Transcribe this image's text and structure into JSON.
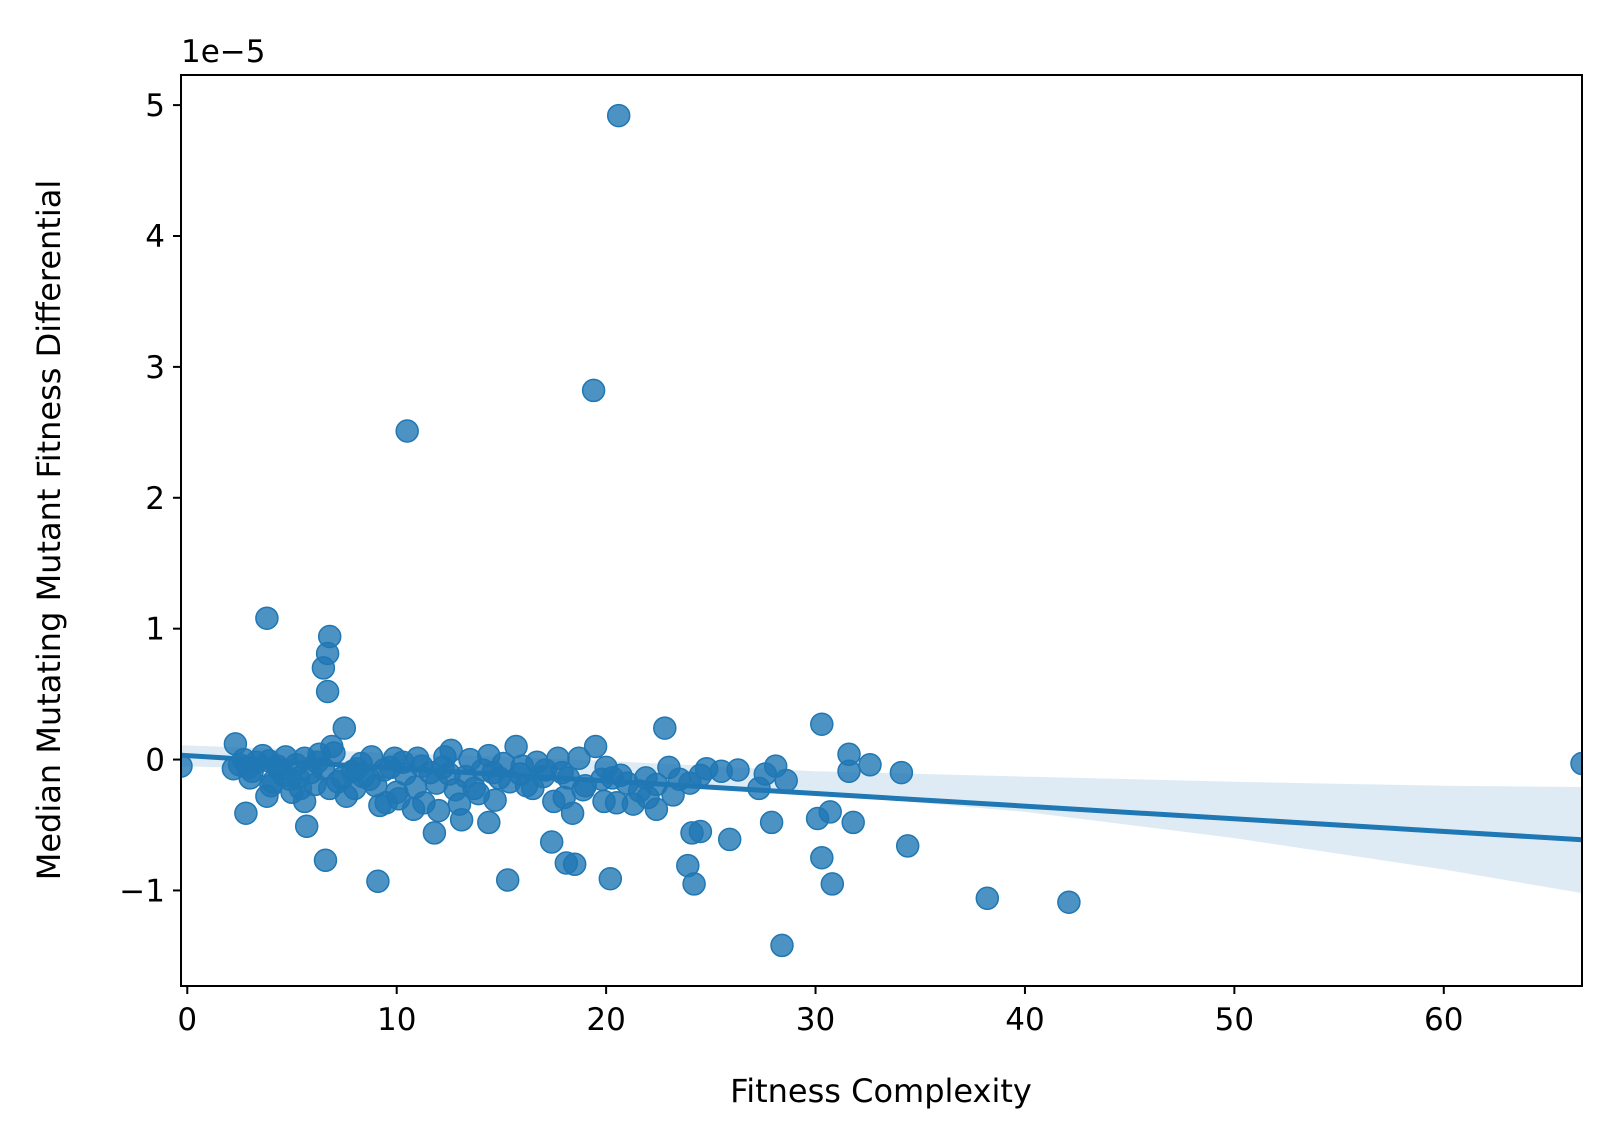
{
  "chart_data": {
    "type": "scatter",
    "title": "",
    "xlabel": "Fitness Complexity",
    "ylabel": "Median Mutating Mutant Fitness Differential",
    "y_offset_label": "1e−5",
    "y_scale_factor": 1e-05,
    "xlim": [
      -0.3,
      66.6
    ],
    "ylim": [
      -1.73,
      5.23
    ],
    "x_ticks": [
      0,
      10,
      20,
      30,
      40,
      50,
      60
    ],
    "x_tick_labels": [
      "0",
      "10",
      "20",
      "30",
      "40",
      "50",
      "60"
    ],
    "y_ticks": [
      -1,
      0,
      1,
      2,
      3,
      4,
      5
    ],
    "y_tick_labels": [
      "−1",
      "0",
      "1",
      "2",
      "3",
      "4",
      "5"
    ],
    "grid": false,
    "legend": "none",
    "colors": {
      "points": "#1f77b4",
      "line": "#1f77b4",
      "band": "#1f77b4"
    },
    "points": [
      [
        -0.3,
        -0.05
      ],
      [
        20.6,
        4.92
      ],
      [
        19.4,
        2.82
      ],
      [
        10.5,
        2.51
      ],
      [
        3.8,
        1.08
      ],
      [
        6.8,
        0.94
      ],
      [
        6.7,
        0.81
      ],
      [
        6.5,
        0.7
      ],
      [
        6.7,
        0.52
      ],
      [
        7.5,
        0.24
      ],
      [
        30.3,
        0.27
      ],
      [
        22.8,
        0.24
      ],
      [
        2.3,
        0.12
      ],
      [
        2.8,
        -0.41
      ],
      [
        3.8,
        -0.28
      ],
      [
        5.6,
        -0.32
      ],
      [
        5.7,
        -0.51
      ],
      [
        6.6,
        -0.77
      ],
      [
        9.1,
        -0.93
      ],
      [
        11.8,
        -0.56
      ],
      [
        13.1,
        -0.46
      ],
      [
        14.4,
        -0.48
      ],
      [
        15.3,
        -0.92
      ],
      [
        17.4,
        -0.63
      ],
      [
        18.1,
        -0.79
      ],
      [
        18.5,
        -0.8
      ],
      [
        18.4,
        -0.41
      ],
      [
        20.2,
        -0.91
      ],
      [
        22.4,
        -0.38
      ],
      [
        23.9,
        -0.81
      ],
      [
        24.1,
        -0.56
      ],
      [
        24.5,
        -0.55
      ],
      [
        24.2,
        -0.95
      ],
      [
        25.9,
        -0.61
      ],
      [
        27.9,
        -0.48
      ],
      [
        28.4,
        -1.42
      ],
      [
        30.1,
        -0.45
      ],
      [
        30.3,
        -0.75
      ],
      [
        30.8,
        -0.95
      ],
      [
        30.7,
        -0.4
      ],
      [
        31.8,
        -0.48
      ],
      [
        34.4,
        -0.66
      ],
      [
        38.2,
        -1.06
      ],
      [
        42.1,
        -1.09
      ],
      [
        34.1,
        -0.1
      ],
      [
        32.6,
        -0.04
      ],
      [
        31.6,
        0.04
      ],
      [
        31.6,
        -0.09
      ],
      [
        28.1,
        -0.05
      ],
      [
        27.6,
        -0.11
      ],
      [
        26.3,
        -0.08
      ],
      [
        24.8,
        -0.07
      ],
      [
        24.5,
        -0.12
      ],
      [
        23.0,
        -0.06
      ],
      [
        22.4,
        -0.19
      ],
      [
        23.2,
        -0.27
      ],
      [
        21.3,
        -0.34
      ],
      [
        20.7,
        -0.12
      ],
      [
        19.5,
        0.1
      ],
      [
        19.9,
        -0.32
      ],
      [
        17.5,
        -0.32
      ],
      [
        17.9,
        -0.1
      ],
      [
        16.2,
        -0.2
      ],
      [
        15.7,
        0.1
      ],
      [
        15.4,
        -0.17
      ],
      [
        14.7,
        -0.31
      ],
      [
        14.4,
        0.03
      ],
      [
        13.7,
        -0.22
      ],
      [
        12.6,
        0.07
      ],
      [
        12.0,
        -0.39
      ],
      [
        11.3,
        -0.33
      ],
      [
        10.8,
        -0.38
      ],
      [
        10.1,
        -0.3
      ],
      [
        9.5,
        -0.33
      ],
      [
        9.2,
        -0.35
      ],
      [
        8.8,
        0.02
      ],
      [
        8.4,
        -0.13
      ],
      [
        7.6,
        -0.28
      ],
      [
        7.2,
        -0.17
      ],
      [
        6.9,
        0.1
      ],
      [
        6.3,
        0.04
      ],
      [
        5.2,
        -0.04
      ],
      [
        4.6,
        -0.12
      ],
      [
        4.1,
        -0.17
      ],
      [
        3.6,
        0.03
      ],
      [
        3.1,
        -0.09
      ],
      [
        2.5,
        -0.04
      ],
      [
        2.2,
        -0.07
      ],
      [
        27.3,
        -0.22
      ],
      [
        28.6,
        -0.16
      ],
      [
        20.3,
        -0.14
      ],
      [
        24.0,
        -0.18
      ],
      [
        25.5,
        -0.09
      ],
      [
        19.0,
        -0.2
      ],
      [
        21.0,
        -0.18
      ],
      [
        18.9,
        -0.23
      ],
      [
        16.7,
        -0.02
      ],
      [
        17.0,
        -0.13
      ],
      [
        14.1,
        -0.08
      ],
      [
        13.3,
        -0.13
      ],
      [
        12.2,
        -0.06
      ],
      [
        11.6,
        -0.1
      ],
      [
        10.4,
        -0.11
      ],
      [
        9.7,
        -0.06
      ],
      [
        8.1,
        -0.07
      ],
      [
        5.9,
        -0.1
      ],
      [
        5.4,
        -0.22
      ],
      [
        4.9,
        -0.15
      ],
      [
        4.3,
        -0.05
      ],
      [
        3.3,
        -0.02
      ],
      [
        2.7,
        0.0
      ],
      [
        6.1,
        -0.19
      ],
      [
        7.9,
        -0.09
      ],
      [
        9.0,
        -0.2
      ],
      [
        10.9,
        -0.21
      ],
      [
        12.8,
        -0.23
      ],
      [
        14.9,
        -0.14
      ],
      [
        16.0,
        -0.05
      ],
      [
        18.2,
        -0.14
      ],
      [
        19.8,
        -0.15
      ],
      [
        21.6,
        -0.24
      ],
      [
        22.0,
        -0.29
      ],
      [
        23.5,
        -0.15
      ],
      [
        20.5,
        -0.33
      ],
      [
        16.5,
        -0.22
      ],
      [
        13.9,
        -0.26
      ],
      [
        11.9,
        -0.18
      ],
      [
        8.7,
        -0.15
      ],
      [
        6.8,
        -0.22
      ],
      [
        5.0,
        -0.25
      ],
      [
        3.0,
        -0.14
      ],
      [
        4.7,
        0.02
      ],
      [
        7.0,
        0.05
      ],
      [
        9.9,
        0.01
      ],
      [
        12.3,
        0.02
      ],
      [
        13.5,
        0.0
      ],
      [
        15.1,
        -0.03
      ],
      [
        17.7,
        0.01
      ],
      [
        18.7,
        0.01
      ],
      [
        11.0,
        0.01
      ],
      [
        10.3,
        -0.02
      ],
      [
        8.3,
        -0.03
      ],
      [
        6.2,
        -0.02
      ],
      [
        5.6,
        0.01
      ],
      [
        3.9,
        -0.01
      ],
      [
        14.6,
        -0.1
      ],
      [
        12.5,
        -0.11
      ],
      [
        11.2,
        -0.05
      ],
      [
        9.4,
        -0.08
      ],
      [
        7.4,
        -0.14
      ],
      [
        6.5,
        -0.07
      ],
      [
        4.4,
        -0.08
      ],
      [
        2.9,
        -0.06
      ],
      [
        17.1,
        -0.08
      ],
      [
        15.9,
        -0.11
      ],
      [
        20.0,
        -0.06
      ],
      [
        21.9,
        -0.14
      ],
      [
        18.0,
        -0.29
      ],
      [
        13.0,
        -0.34
      ],
      [
        10.0,
        -0.25
      ],
      [
        8.0,
        -0.22
      ],
      [
        5.3,
        -0.14
      ],
      [
        4.0,
        -0.2
      ],
      [
        66.6,
        -0.03
      ]
    ],
    "regression": {
      "intercept": 0.03,
      "slope": -0.00965,
      "band_lower": [
        [
          -0.3,
          -0.05
        ],
        [
          10,
          -0.1
        ],
        [
          20,
          -0.16
        ],
        [
          30,
          -0.26
        ],
        [
          40,
          -0.4
        ],
        [
          50,
          -0.6
        ],
        [
          60,
          -0.84
        ],
        [
          66.6,
          -1.02
        ]
      ],
      "band_upper": [
        [
          -0.3,
          0.11
        ],
        [
          10,
          0.05
        ],
        [
          20,
          -0.01
        ],
        [
          30,
          -0.09
        ],
        [
          40,
          -0.13
        ],
        [
          50,
          -0.17
        ],
        [
          60,
          -0.2
        ],
        [
          66.6,
          -0.21
        ]
      ]
    }
  }
}
